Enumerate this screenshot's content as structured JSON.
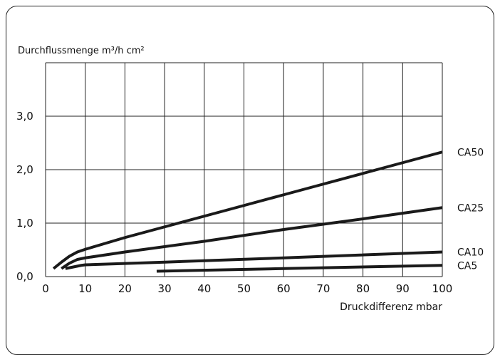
{
  "chart_data": {
    "type": "line",
    "ylabel": "Durchflussmenge m³/h cm²",
    "xlabel": "Druckdifferenz mbar",
    "xlim": [
      0,
      100
    ],
    "ylim": [
      0,
      4
    ],
    "x_ticks": [
      "0",
      "10",
      "20",
      "30",
      "40",
      "50",
      "60",
      "70",
      "80",
      "90",
      "100"
    ],
    "y_ticks": [
      "0,0",
      "1,0",
      "2,0",
      "3,0"
    ],
    "grid": true,
    "series": [
      {
        "name": "CA50",
        "points": [
          [
            2,
            0.15
          ],
          [
            4,
            0.27
          ],
          [
            6,
            0.38
          ],
          [
            8,
            0.46
          ],
          [
            10,
            0.51
          ],
          [
            20,
            0.73
          ],
          [
            30,
            0.93
          ],
          [
            40,
            1.13
          ],
          [
            50,
            1.33
          ],
          [
            60,
            1.53
          ],
          [
            70,
            1.73
          ],
          [
            80,
            1.93
          ],
          [
            90,
            2.13
          ],
          [
            100,
            2.33
          ]
        ]
      },
      {
        "name": "CA25",
        "points": [
          [
            4,
            0.15
          ],
          [
            6,
            0.25
          ],
          [
            8,
            0.32
          ],
          [
            10,
            0.35
          ],
          [
            20,
            0.46
          ],
          [
            40,
            0.66
          ],
          [
            60,
            0.88
          ],
          [
            80,
            1.08
          ],
          [
            100,
            1.29
          ]
        ]
      },
      {
        "name": "CA10",
        "points": [
          [
            5,
            0.15
          ],
          [
            7,
            0.18
          ],
          [
            9,
            0.21
          ],
          [
            10,
            0.22
          ],
          [
            30,
            0.27
          ],
          [
            60,
            0.35
          ],
          [
            100,
            0.46
          ]
        ]
      },
      {
        "name": "CA5",
        "points": [
          [
            28,
            0.1
          ],
          [
            60,
            0.15
          ],
          [
            100,
            0.21
          ]
        ]
      }
    ]
  }
}
